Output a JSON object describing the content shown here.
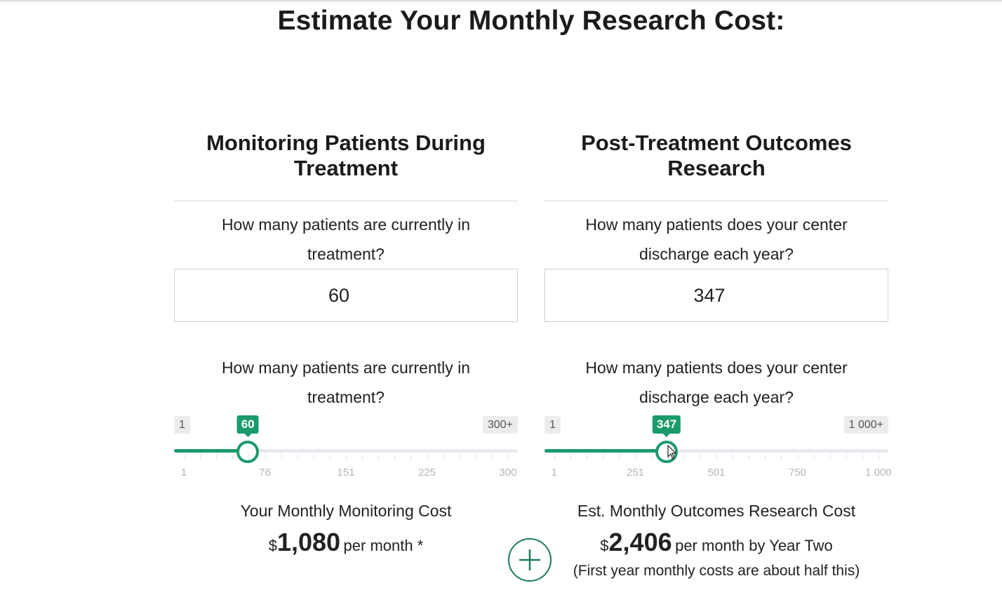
{
  "page": {
    "title": "Estimate Your Monthly Research Cost:"
  },
  "monitoring": {
    "title": "Monitoring Patients During Treatment",
    "question_input": "How many patients are currently in treatment?",
    "input_value": "60",
    "question_slider": "How many patients are currently in treatment?",
    "slider": {
      "min": 1,
      "max": 300,
      "value": 60,
      "value_label": "60",
      "min_label": "1",
      "max_label": "300+",
      "scale_labels": [
        "1",
        "76",
        "151",
        "225",
        "300"
      ]
    },
    "cost_label": "Your Monthly Monitoring Cost",
    "currency": "$",
    "amount": "1,080",
    "suffix": "per month *"
  },
  "outcomes": {
    "title": "Post-Treatment Outcomes Research",
    "question_input": "How many patients does your center discharge each year?",
    "input_value": "347",
    "question_slider": "How many patients does your center discharge each year?",
    "slider": {
      "min": 1,
      "max": 1000,
      "value": 347,
      "value_label": "347",
      "min_label": "1",
      "max_label": "1 000+",
      "scale_labels": [
        "1",
        "251",
        "501",
        "750",
        "1 000"
      ]
    },
    "cost_label": "Est. Monthly Outcomes Research Cost",
    "currency": "$",
    "amount": "2,406",
    "suffix": "per month by Year Two",
    "note": "(First year monthly costs are about half this)"
  },
  "colors": {
    "accent": "#1b9a6b",
    "track": "#e8e8ee",
    "plus_border": "#1b7a5a"
  },
  "icons": {
    "plus": "plus-icon",
    "cursor": "mouse-pointer-icon"
  }
}
